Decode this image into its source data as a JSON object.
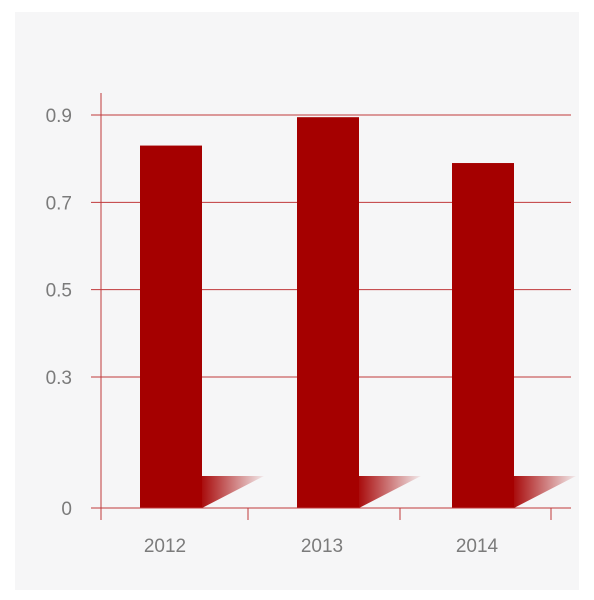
{
  "chart_data": {
    "type": "bar",
    "categories": [
      "2012",
      "2013",
      "2014"
    ],
    "values": [
      0.83,
      0.895,
      0.79
    ],
    "title": "",
    "xlabel": "",
    "ylabel": "",
    "ylim": [
      0,
      0.9
    ],
    "yticks": [
      {
        "value": 0,
        "label": "0"
      },
      {
        "value": 0.3,
        "label": "0.3"
      },
      {
        "value": 0.5,
        "label": "0.5"
      },
      {
        "value": 0.7,
        "label": "0.7"
      },
      {
        "value": 0.9,
        "label": "0.9"
      }
    ],
    "grid": true,
    "legend": "none",
    "colors": {
      "bar": "#a50000",
      "axis": "#c0393b",
      "grid": "#c0393b",
      "tick_text": "#7b7b7b",
      "background": "#f6f6f7",
      "shadow": "#a50000"
    }
  }
}
